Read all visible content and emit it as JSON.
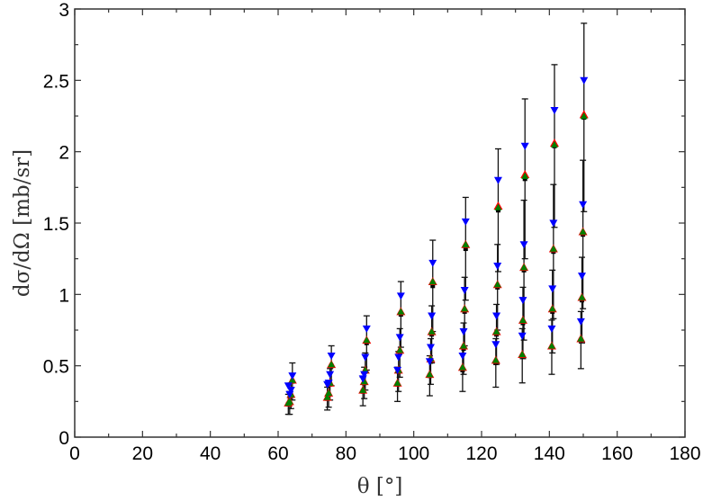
{
  "chart_data": {
    "type": "scatter",
    "title": "",
    "xlabel": "θ [°]",
    "ylabel": "dσ/dΩ  [mb/sr]",
    "xlim": [
      0,
      180
    ],
    "ylim": [
      0,
      3
    ],
    "xticks": [
      "0",
      "20",
      "40",
      "60",
      "80",
      "100",
      "120",
      "140",
      "160",
      "180"
    ],
    "yticks": [
      "0",
      "0.5",
      "1",
      "1.5",
      "2",
      "2.5",
      "3"
    ],
    "grid": false,
    "legend": "none",
    "x": [
      64.2,
      63.8,
      63.4,
      63.0,
      75.7,
      75.3,
      74.9,
      74.5,
      86.1,
      85.7,
      85.4,
      85.0,
      96.2,
      95.9,
      95.5,
      95.2,
      105.6,
      105.3,
      105.0,
      104.7,
      115.3,
      115.0,
      114.7,
      114.4,
      124.9,
      124.7,
      124.4,
      124.2,
      132.8,
      132.5,
      132.2,
      132.0,
      141.5,
      141.2,
      140.9,
      140.7,
      150.2,
      149.9,
      149.6,
      149.3
    ],
    "series": [
      {
        "marker": "square",
        "color": "#000000",
        "with_error_bars": true,
        "values": [
          0.39,
          0.29,
          0.24,
          0.23,
          0.5,
          0.37,
          0.3,
          0.27,
          0.66,
          0.46,
          0.38,
          0.32,
          0.86,
          0.59,
          0.46,
          0.37,
          1.06,
          0.72,
          0.53,
          0.43,
          1.32,
          0.88,
          0.62,
          0.47,
          1.59,
          1.05,
          0.72,
          0.52,
          1.81,
          1.17,
          0.8,
          0.57,
          2.04,
          1.3,
          0.88,
          0.63,
          2.24,
          1.42,
          0.96,
          0.68
        ],
        "errors": [
          0.13,
          0.09,
          0.08,
          0.07,
          0.14,
          0.11,
          0.09,
          0.08,
          0.19,
          0.13,
          0.11,
          0.1,
          0.23,
          0.17,
          0.14,
          0.12,
          0.32,
          0.2,
          0.16,
          0.14,
          0.36,
          0.24,
          0.18,
          0.15,
          0.43,
          0.3,
          0.21,
          0.17,
          0.56,
          0.49,
          0.25,
          0.19,
          0.57,
          0.47,
          0.29,
          0.19,
          0.66,
          0.52,
          0.3,
          0.2
        ]
      },
      {
        "marker": "triangle-up",
        "color": "#ff0000",
        "values": [
          0.4,
          0.3,
          0.25,
          0.24,
          0.51,
          0.38,
          0.31,
          0.28,
          0.68,
          0.47,
          0.39,
          0.33,
          0.88,
          0.61,
          0.47,
          0.38,
          1.09,
          0.74,
          0.55,
          0.44,
          1.35,
          0.9,
          0.64,
          0.49,
          1.62,
          1.07,
          0.74,
          0.54,
          1.84,
          1.19,
          0.82,
          0.58,
          2.06,
          1.32,
          0.9,
          0.64,
          2.26,
          1.44,
          0.98,
          0.69
        ]
      },
      {
        "marker": "triangle-up",
        "color": "#008000",
        "values": [
          0.4,
          0.3,
          0.25,
          0.24,
          0.51,
          0.38,
          0.31,
          0.28,
          0.68,
          0.47,
          0.39,
          0.33,
          0.88,
          0.61,
          0.47,
          0.38,
          1.09,
          0.74,
          0.55,
          0.44,
          1.35,
          0.9,
          0.64,
          0.49,
          1.61,
          1.07,
          0.74,
          0.54,
          1.83,
          1.19,
          0.82,
          0.58,
          2.05,
          1.32,
          0.9,
          0.64,
          2.25,
          1.44,
          0.98,
          0.69
        ]
      },
      {
        "marker": "triangle-down",
        "color": "#0000ff",
        "values": [
          0.43,
          0.33,
          0.3,
          0.36,
          0.57,
          0.44,
          0.38,
          0.37,
          0.76,
          0.56,
          0.44,
          0.41,
          0.99,
          0.7,
          0.56,
          0.47,
          1.22,
          0.85,
          0.63,
          0.53,
          1.51,
          1.03,
          0.74,
          0.57,
          1.8,
          1.2,
          0.85,
          0.65,
          2.04,
          1.35,
          0.96,
          0.71,
          2.29,
          1.5,
          1.04,
          0.76,
          2.5,
          1.63,
          1.13,
          0.81
        ]
      }
    ]
  }
}
